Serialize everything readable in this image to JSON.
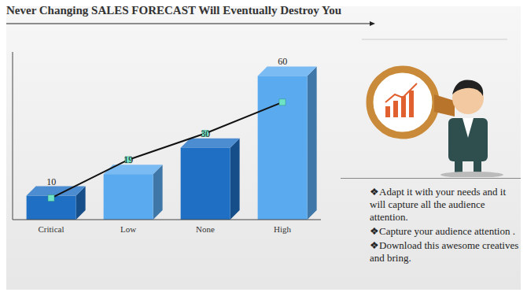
{
  "chart_data": {
    "type": "bar",
    "title": "Never Changing SALES FORECAST Will Eventually Destroy You",
    "categories": [
      "Critical",
      "Low",
      "None",
      "High"
    ],
    "ylim": [
      0,
      70
    ],
    "tick_labels": "x",
    "series": [
      {
        "type": "bar",
        "values": [
          10,
          19,
          30,
          60
        ],
        "colors": [
          "#1f6fc4",
          "#5aaaf0",
          "#1f6fc4",
          "#5aaaf0"
        ],
        "data_labels": true
      },
      {
        "type": "line",
        "values": [
          9,
          25,
          36,
          49
        ],
        "color": "#111111",
        "marker": "square"
      }
    ],
    "annotations": [
      "❖Adapt it with your needs and it will capture all the audience attention.",
      "❖Capture your audience attention .",
      "❖Download this awesome creatives and bring."
    ]
  }
}
